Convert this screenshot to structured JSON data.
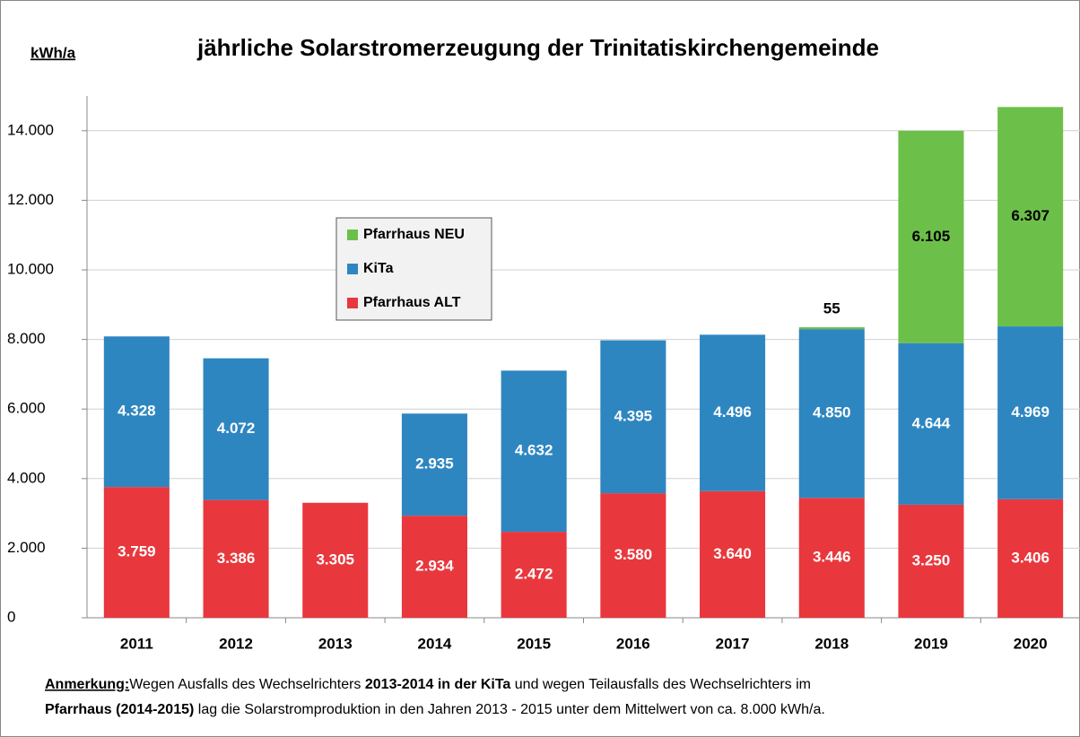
{
  "chart_data": {
    "type": "stacked-bar",
    "title": "jährliche Solarstromerzeugung der Trinitatiskirchengemeinde",
    "y_label": "kWh/a",
    "categories": [
      "2011",
      "2012",
      "2013",
      "2014",
      "2015",
      "2016",
      "2017",
      "2018",
      "2019",
      "2020"
    ],
    "series": [
      {
        "name": "Pfarrhaus ALT",
        "color": "#e8383d",
        "label_color": "#ffffff",
        "values": [
          3759,
          3386,
          3305,
          2934,
          2472,
          3580,
          3640,
          3446,
          3250,
          3406
        ],
        "value_labels": [
          "3.759",
          "3.386",
          "3.305",
          "2.934",
          "2.472",
          "3.580",
          "3.640",
          "3.446",
          "3.250",
          "3.406"
        ]
      },
      {
        "name": "KiTa",
        "color": "#2e86c1",
        "label_color": "#ffffff",
        "values": [
          4328,
          4072,
          null,
          2935,
          4632,
          4395,
          4496,
          4850,
          4644,
          4969
        ],
        "value_labels": [
          "4.328",
          "4.072",
          null,
          "2.935",
          "4.632",
          "4.395",
          "4.496",
          "4.850",
          "4.644",
          "4.969"
        ]
      },
      {
        "name": "Pfarrhaus NEU",
        "color": "#6cc04a",
        "label_color": "#000000",
        "values": [
          null,
          null,
          null,
          null,
          null,
          null,
          null,
          55,
          6105,
          6307
        ],
        "value_labels": [
          null,
          null,
          null,
          null,
          null,
          null,
          null,
          "55",
          "6.105",
          "6.307"
        ]
      }
    ],
    "ylim": [
      0,
      15000
    ],
    "yticks": [
      0,
      {
        "value": 2000,
        "label": "2.000"
      },
      {
        "value": 4000,
        "label": "4.000"
      },
      {
        "value": 6000,
        "label": "6.000"
      },
      {
        "value": 8000,
        "label": "8.000"
      },
      {
        "value": 10000,
        "label": "10.000"
      },
      {
        "value": 12000,
        "label": "12.000"
      },
      {
        "value": 14000,
        "label": "14.000"
      }
    ],
    "grid": true,
    "legend_position": "upper-left",
    "annotation": {
      "label": "Anmerkung:",
      "lines": [
        [
          {
            "text": "Wegen Ausfalls des Wechselrichters ",
            "bold": false
          },
          {
            "text": "2013-2014 in der KiTa",
            "bold": true
          },
          {
            "text": " und wegen Teilausfalls des Wechselrichters im",
            "bold": false
          }
        ],
        [
          {
            "text": "Pfarrhaus (2014-2015)",
            "bold": true
          },
          {
            "text": " lag die Solarstromproduktion in den Jahren 2013 - 2015 unter dem Mittelwert von ca. 8.000 kWh/a.",
            "bold": false
          }
        ]
      ]
    }
  }
}
